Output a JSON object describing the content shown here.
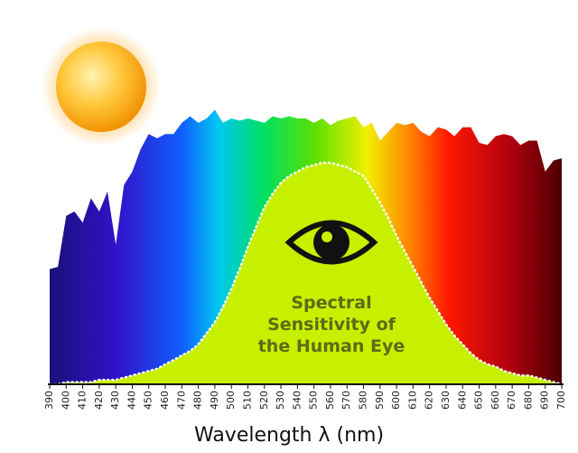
{
  "chart_data": {
    "type": "area",
    "x_label": "Wavelength λ (nm)",
    "annotation": [
      "Spectral",
      "Sensitivity of",
      "the Human Eye"
    ],
    "x": [
      390,
      395,
      400,
      405,
      410,
      415,
      420,
      425,
      430,
      435,
      440,
      445,
      450,
      455,
      460,
      465,
      470,
      475,
      480,
      485,
      490,
      495,
      500,
      505,
      510,
      515,
      520,
      525,
      530,
      535,
      540,
      545,
      550,
      555,
      560,
      565,
      570,
      575,
      580,
      585,
      590,
      595,
      600,
      605,
      610,
      615,
      620,
      625,
      630,
      635,
      640,
      645,
      650,
      655,
      660,
      665,
      670,
      675,
      680,
      685,
      690,
      695,
      700
    ],
    "series": [
      {
        "values": [
          0.52,
          0.53,
          0.76,
          0.78,
          0.73,
          0.84,
          0.78,
          0.87,
          0.63,
          0.9,
          0.96,
          1.06,
          1.13,
          1.11,
          1.13,
          1.13,
          1.18,
          1.21,
          1.18,
          1.2,
          1.24,
          1.18,
          1.2,
          1.19,
          1.2,
          1.19,
          1.18,
          1.21,
          1.2,
          1.21,
          1.2,
          1.2,
          1.18,
          1.2,
          1.17,
          1.19,
          1.2,
          1.21,
          1.16,
          1.18,
          1.1,
          1.14,
          1.18,
          1.17,
          1.18,
          1.14,
          1.12,
          1.16,
          1.15,
          1.12,
          1.16,
          1.16,
          1.09,
          1.08,
          1.12,
          1.13,
          1.12,
          1.08,
          1.1,
          1.1,
          0.96,
          1.01,
          1.02
        ]
      },
      {
        "color": "#c6f000",
        "values": [
          0.0,
          0.0,
          0.01,
          0.01,
          0.01,
          0.01,
          0.02,
          0.02,
          0.02,
          0.03,
          0.04,
          0.05,
          0.06,
          0.07,
          0.09,
          0.11,
          0.13,
          0.15,
          0.18,
          0.23,
          0.28,
          0.35,
          0.43,
          0.52,
          0.62,
          0.71,
          0.8,
          0.86,
          0.91,
          0.94,
          0.96,
          0.98,
          0.99,
          1.0,
          1.0,
          0.99,
          0.98,
          0.96,
          0.94,
          0.88,
          0.82,
          0.75,
          0.67,
          0.6,
          0.53,
          0.46,
          0.39,
          0.33,
          0.27,
          0.22,
          0.18,
          0.14,
          0.11,
          0.09,
          0.08,
          0.06,
          0.05,
          0.04,
          0.04,
          0.03,
          0.02,
          0.01,
          0.0
        ]
      }
    ],
    "xlim": [
      390,
      700
    ],
    "ylim": [
      0,
      1.3
    ],
    "xticks": [
      390,
      400,
      410,
      420,
      430,
      440,
      450,
      460,
      470,
      480,
      490,
      500,
      510,
      520,
      530,
      540,
      550,
      560,
      570,
      580,
      590,
      600,
      610,
      620,
      630,
      640,
      650,
      660,
      670,
      680,
      690,
      700
    ]
  }
}
